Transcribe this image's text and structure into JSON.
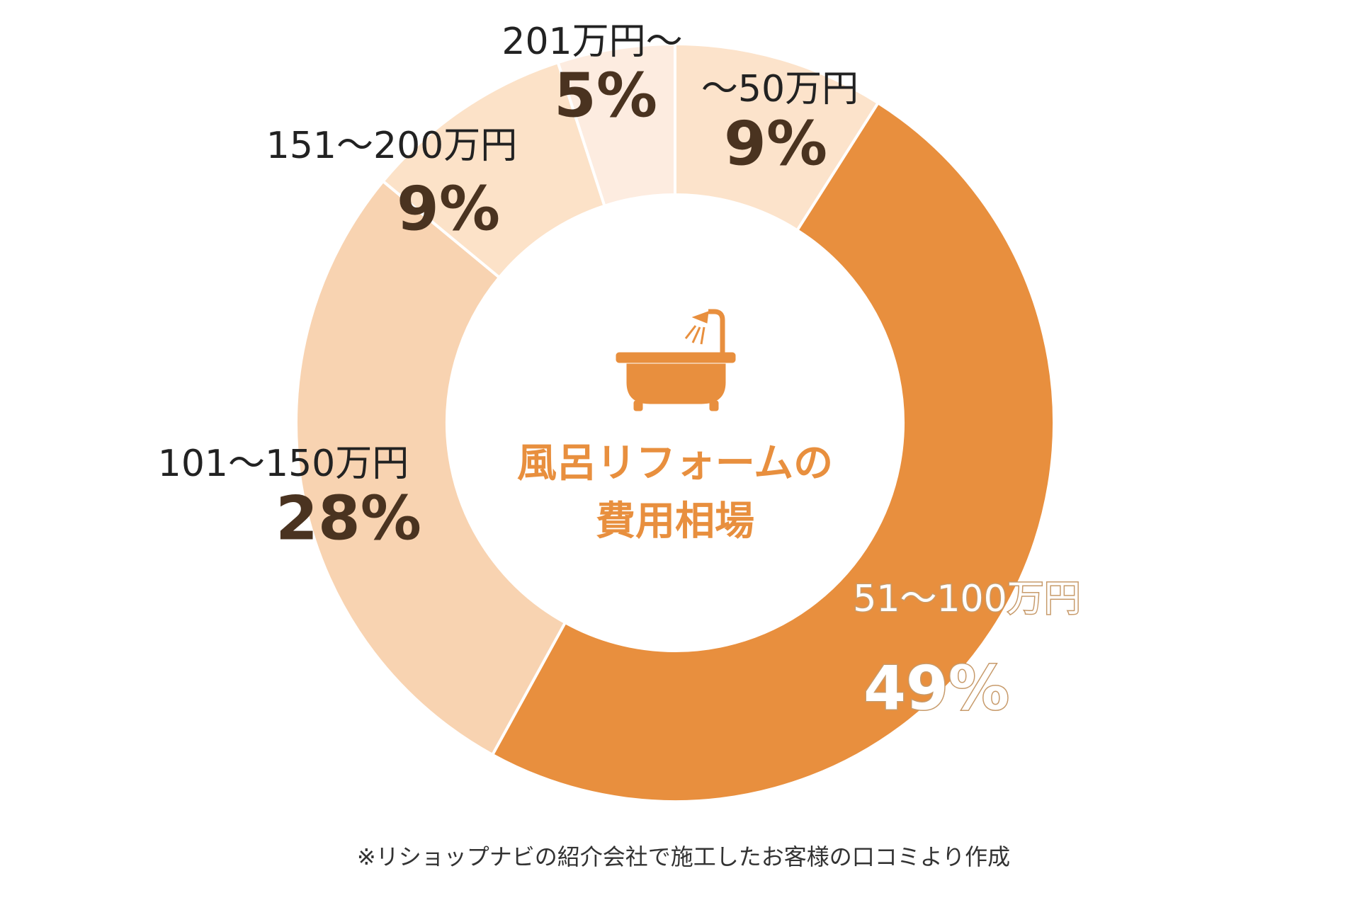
{
  "chart_data": {
    "type": "donut",
    "center_title": [
      "風呂リフォームの",
      "費用相場"
    ],
    "categories": [
      "〜50万円",
      "51〜100万円",
      "101〜150万円",
      "151〜200万円",
      "201万円〜"
    ],
    "values": [
      9,
      49,
      28,
      9,
      5
    ],
    "value_labels": [
      "9%",
      "49%",
      "28%",
      "9%",
      "5%"
    ],
    "colors": [
      "#fce3cb",
      "#e88f3e",
      "#f8d3b1",
      "#fce2c8",
      "#fdece0"
    ],
    "footnote": "※リショップナビの紹介会社で施工したお客様の口コミより作成"
  }
}
